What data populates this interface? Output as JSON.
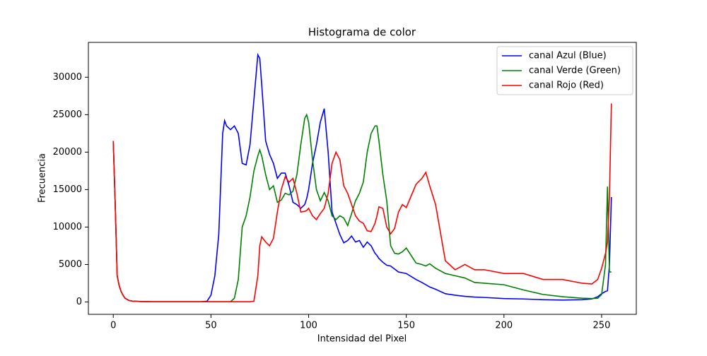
{
  "chart_data": {
    "type": "line",
    "title": "Histograma de color",
    "x_label": "Intensidad del Pixel",
    "y_label": "Frecuencia",
    "x": [
      0,
      1,
      2,
      3,
      4,
      5,
      6,
      8,
      10,
      15,
      20,
      30,
      40,
      45,
      48,
      50,
      52,
      54,
      56,
      57,
      58,
      60,
      62,
      64,
      66,
      68,
      70,
      72,
      74,
      75,
      76,
      78,
      80,
      82,
      84,
      86,
      88,
      90,
      92,
      94,
      96,
      98,
      99,
      100,
      102,
      104,
      106,
      108,
      110,
      112,
      114,
      116,
      118,
      120,
      122,
      124,
      126,
      128,
      130,
      132,
      134,
      135,
      136,
      138,
      140,
      142,
      144,
      146,
      148,
      150,
      155,
      158,
      160,
      162,
      165,
      170,
      175,
      180,
      185,
      190,
      200,
      210,
      220,
      230,
      240,
      245,
      248,
      250,
      252,
      253,
      254,
      255
    ],
    "series": [
      {
        "name": "canal Azul (Blue)",
        "color": "#0000ff",
        "values": [
          21500,
          13000,
          3500,
          2200,
          1400,
          900,
          500,
          200,
          100,
          50,
          30,
          30,
          30,
          30,
          100,
          900,
          3500,
          9000,
          22500,
          24200,
          23500,
          23000,
          23500,
          22500,
          18500,
          18300,
          21000,
          27000,
          33000,
          32500,
          29000,
          21500,
          19700,
          18500,
          16500,
          17200,
          17200,
          15500,
          13300,
          13000,
          12500,
          13000,
          13800,
          15000,
          18500,
          21000,
          24000,
          25800,
          20000,
          12000,
          10500,
          9000,
          7900,
          8200,
          8800,
          8000,
          8200,
          7300,
          8000,
          7500,
          6500,
          6200,
          5800,
          5300,
          4900,
          4800,
          4400,
          4000,
          3900,
          3800,
          3000,
          2600,
          2300,
          2000,
          1700,
          1100,
          900,
          750,
          650,
          600,
          450,
          400,
          300,
          250,
          300,
          400,
          700,
          1100,
          1400,
          1500,
          5000,
          14000
        ]
      },
      {
        "name": "canal Verde (Green)",
        "color": "#008000",
        "values": [
          21300,
          13000,
          3500,
          2200,
          1400,
          900,
          500,
          200,
          100,
          50,
          30,
          30,
          30,
          30,
          30,
          30,
          30,
          30,
          30,
          30,
          30,
          30,
          500,
          3000,
          10000,
          11500,
          14000,
          17500,
          19500,
          20300,
          19500,
          17000,
          15000,
          15500,
          13300,
          13600,
          14500,
          14300,
          14800,
          17000,
          21000,
          24500,
          25000,
          24000,
          19000,
          15000,
          13500,
          14600,
          13500,
          11500,
          11000,
          11500,
          11200,
          10200,
          11800,
          13500,
          14500,
          16000,
          20000,
          22500,
          23500,
          23500,
          21500,
          17000,
          13500,
          7500,
          6500,
          6400,
          6700,
          7200,
          5200,
          5000,
          4800,
          5100,
          4500,
          3800,
          3500,
          3200,
          2600,
          2500,
          2300,
          1600,
          1000,
          700,
          500,
          450,
          500,
          1000,
          5000,
          15400,
          4000,
          4000
        ]
      },
      {
        "name": "canal Rojo (Red)",
        "color": "#ff0000",
        "values": [
          21500,
          13000,
          3500,
          2200,
          1400,
          900,
          500,
          200,
          100,
          50,
          30,
          30,
          30,
          30,
          30,
          30,
          30,
          30,
          30,
          30,
          30,
          30,
          30,
          30,
          30,
          30,
          30,
          100,
          3500,
          7500,
          8700,
          8000,
          7500,
          8500,
          12000,
          15000,
          16700,
          16000,
          16500,
          14500,
          12000,
          12100,
          12200,
          12500,
          11500,
          11000,
          11800,
          12500,
          14500,
          18500,
          20000,
          19000,
          15500,
          14500,
          13000,
          11500,
          10800,
          10500,
          9500,
          9400,
          10500,
          11500,
          12700,
          12500,
          10000,
          9100,
          9800,
          12000,
          13000,
          12600,
          15700,
          16500,
          17300,
          15500,
          13000,
          5500,
          4300,
          5000,
          4300,
          4300,
          3800,
          3800,
          3000,
          3000,
          2500,
          2400,
          3000,
          4500,
          6500,
          8000,
          14000,
          26500
        ]
      }
    ],
    "xlim": [
      -12.75,
      267.75
    ],
    "ylim": [
      -1650,
      34650
    ],
    "xticks": [
      0,
      50,
      100,
      150,
      200,
      250
    ],
    "yticks": [
      0,
      5000,
      10000,
      15000,
      20000,
      25000,
      30000
    ],
    "grid": false,
    "legend": "upper right"
  }
}
